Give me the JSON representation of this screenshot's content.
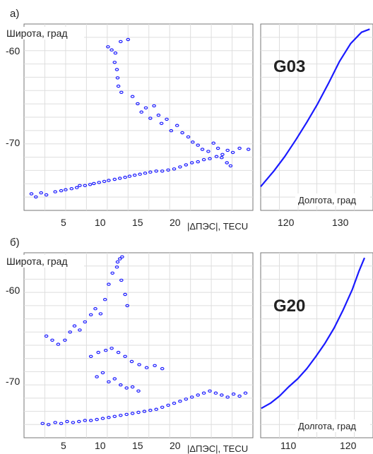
{
  "chart_data": [
    {
      "type": "scatter",
      "panel_label": "а)",
      "ylabel": "Широта, град",
      "xlabel": "|ΔПЭС|, TECU",
      "xticks": [
        "5",
        "10",
        "15",
        "20"
      ],
      "yticks": [
        "-60",
        "-70"
      ],
      "xlim": [
        0,
        30.8
      ],
      "ylim": [
        -76.8,
        -58.8
      ],
      "marker_color": "#1a1aff",
      "series": [
        {
          "points": [
            [
              1.0,
              -75.2
            ],
            [
              1.6,
              -75.5
            ],
            [
              2.3,
              -75.1
            ],
            [
              3.0,
              -75.3
            ],
            [
              4.2,
              -75.0
            ],
            [
              5.0,
              -74.9
            ],
            [
              5.6,
              -74.8
            ],
            [
              6.4,
              -74.7
            ],
            [
              7.1,
              -74.6
            ],
            [
              7.5,
              -74.4
            ],
            [
              8.2,
              -74.4
            ],
            [
              8.9,
              -74.3
            ],
            [
              9.4,
              -74.2
            ],
            [
              10.1,
              -74.1
            ],
            [
              10.8,
              -74.0
            ],
            [
              11.4,
              -73.9
            ],
            [
              12.2,
              -73.8
            ],
            [
              12.9,
              -73.7
            ],
            [
              13.6,
              -73.6
            ],
            [
              14.2,
              -73.5
            ],
            [
              14.9,
              -73.4
            ],
            [
              15.6,
              -73.3
            ],
            [
              16.3,
              -73.2
            ],
            [
              17.0,
              -73.1
            ],
            [
              17.8,
              -73.0
            ],
            [
              18.6,
              -73.0
            ],
            [
              19.4,
              -72.9
            ],
            [
              20.2,
              -72.8
            ],
            [
              21.0,
              -72.6
            ],
            [
              21.8,
              -72.4
            ],
            [
              22.6,
              -72.2
            ],
            [
              23.4,
              -72.1
            ],
            [
              24.2,
              -71.9
            ],
            [
              25.0,
              -71.8
            ],
            [
              25.9,
              -71.6
            ],
            [
              26.6,
              -71.7
            ],
            [
              27.3,
              -72.2
            ],
            [
              27.8,
              -72.5
            ],
            [
              11.3,
              -61.0
            ],
            [
              11.8,
              -61.3
            ],
            [
              12.3,
              -61.6
            ],
            [
              13.0,
              -60.5
            ],
            [
              14.0,
              -60.3
            ],
            [
              12.2,
              -62.5
            ],
            [
              12.5,
              -63.2
            ],
            [
              12.6,
              -64.0
            ],
            [
              12.7,
              -64.8
            ],
            [
              13.1,
              -65.4
            ],
            [
              14.6,
              -65.8
            ],
            [
              15.3,
              -66.5
            ],
            [
              15.8,
              -67.3
            ],
            [
              16.4,
              -66.9
            ],
            [
              17.0,
              -67.9
            ],
            [
              17.5,
              -66.7
            ],
            [
              18.1,
              -67.6
            ],
            [
              18.5,
              -68.4
            ],
            [
              19.2,
              -68.0
            ],
            [
              19.8,
              -69.1
            ],
            [
              20.6,
              -68.6
            ],
            [
              21.3,
              -69.3
            ],
            [
              22.1,
              -69.7
            ],
            [
              22.7,
              -70.2
            ],
            [
              23.4,
              -70.5
            ],
            [
              24.0,
              -70.9
            ],
            [
              24.8,
              -71.1
            ],
            [
              25.5,
              -70.3
            ],
            [
              26.1,
              -70.8
            ],
            [
              26.7,
              -71.4
            ],
            [
              27.4,
              -71.0
            ],
            [
              28.1,
              -71.2
            ],
            [
              29.0,
              -70.8
            ],
            [
              30.2,
              -70.9
            ]
          ]
        }
      ]
    },
    {
      "type": "line",
      "panel_label": "G03",
      "xlabel": "Долгота, град",
      "xticks": [
        "120",
        "130"
      ],
      "xlim": [
        115.6,
        136.1
      ],
      "ylim": [
        -76.8,
        -58.8
      ],
      "line_color": "#1a1aff",
      "points": [
        [
          115.6,
          -74.5
        ],
        [
          118.0,
          -73.0
        ],
        [
          120.0,
          -71.6
        ],
        [
          122.0,
          -70.0
        ],
        [
          124.0,
          -68.3
        ],
        [
          126.0,
          -66.5
        ],
        [
          128.0,
          -64.5
        ],
        [
          130.0,
          -62.4
        ],
        [
          132.0,
          -60.7
        ],
        [
          134.0,
          -59.6
        ],
        [
          135.5,
          -59.3
        ]
      ]
    },
    {
      "type": "scatter",
      "panel_label": "б)",
      "ylabel": "Широта, град",
      "xlabel": "|ΔПЭС|, TECU",
      "xticks": [
        "5",
        "10",
        "15",
        "20"
      ],
      "yticks": [
        "-60",
        "-70"
      ],
      "xlim": [
        0,
        30.8
      ],
      "ylim": [
        -75.6,
        -57.4
      ],
      "marker_color": "#1a1aff",
      "series": [
        {
          "points": [
            [
              2.5,
              -74.2
            ],
            [
              3.3,
              -74.3
            ],
            [
              4.2,
              -74.1
            ],
            [
              5.0,
              -74.2
            ],
            [
              5.8,
              -74.0
            ],
            [
              6.6,
              -74.1
            ],
            [
              7.4,
              -74.0
            ],
            [
              8.2,
              -73.9
            ],
            [
              9.0,
              -73.9
            ],
            [
              9.8,
              -73.8
            ],
            [
              10.6,
              -73.7
            ],
            [
              11.4,
              -73.6
            ],
            [
              12.2,
              -73.5
            ],
            [
              13.0,
              -73.4
            ],
            [
              13.8,
              -73.3
            ],
            [
              14.6,
              -73.2
            ],
            [
              15.4,
              -73.1
            ],
            [
              16.2,
              -73.0
            ],
            [
              17.0,
              -72.9
            ],
            [
              17.8,
              -72.8
            ],
            [
              18.6,
              -72.6
            ],
            [
              19.4,
              -72.4
            ],
            [
              20.2,
              -72.2
            ],
            [
              21.0,
              -72.0
            ],
            [
              21.8,
              -71.8
            ],
            [
              22.6,
              -71.6
            ],
            [
              23.4,
              -71.4
            ],
            [
              24.2,
              -71.2
            ],
            [
              25.0,
              -71.0
            ],
            [
              25.8,
              -71.2
            ],
            [
              26.6,
              -71.4
            ],
            [
              27.4,
              -71.6
            ],
            [
              28.2,
              -71.3
            ],
            [
              29.0,
              -71.5
            ],
            [
              29.8,
              -71.2
            ],
            [
              3.0,
              -65.6
            ],
            [
              3.8,
              -66.0
            ],
            [
              4.6,
              -66.4
            ],
            [
              5.5,
              -66.0
            ],
            [
              6.2,
              -65.2
            ],
            [
              6.8,
              -64.6
            ],
            [
              7.5,
              -65.0
            ],
            [
              8.2,
              -64.2
            ],
            [
              9.0,
              -63.5
            ],
            [
              9.6,
              -62.9
            ],
            [
              10.3,
              -63.4
            ],
            [
              10.9,
              -62.0
            ],
            [
              11.4,
              -60.5
            ],
            [
              11.9,
              -59.4
            ],
            [
              12.5,
              -58.8
            ],
            [
              13.1,
              -60.1
            ],
            [
              13.6,
              -61.5
            ],
            [
              13.9,
              -62.6
            ],
            [
              12.6,
              -58.3
            ],
            [
              12.9,
              -58.0
            ],
            [
              13.2,
              -57.8
            ],
            [
              9.0,
              -67.6
            ],
            [
              10.0,
              -67.2
            ],
            [
              11.0,
              -67.0
            ],
            [
              11.8,
              -66.8
            ],
            [
              12.7,
              -67.2
            ],
            [
              13.6,
              -67.6
            ],
            [
              14.5,
              -68.1
            ],
            [
              15.5,
              -68.4
            ],
            [
              16.5,
              -68.7
            ],
            [
              17.6,
              -68.5
            ],
            [
              18.6,
              -68.8
            ],
            [
              9.8,
              -69.6
            ],
            [
              10.6,
              -69.2
            ],
            [
              11.4,
              -70.1
            ],
            [
              12.2,
              -69.8
            ],
            [
              13.0,
              -70.4
            ],
            [
              13.8,
              -70.7
            ],
            [
              14.6,
              -70.6
            ],
            [
              15.4,
              -71.0
            ]
          ]
        }
      ]
    },
    {
      "type": "line",
      "panel_label": "G20",
      "xlabel": "Долгота, град",
      "xticks": [
        "110",
        "120"
      ],
      "xlim": [
        103.4,
        121.9
      ],
      "ylim": [
        -75.6,
        -57.4
      ],
      "line_color": "#1a1aff",
      "points": [
        [
          103.5,
          -72.7
        ],
        [
          105.0,
          -72.2
        ],
        [
          106.5,
          -71.5
        ],
        [
          108.0,
          -70.6
        ],
        [
          109.5,
          -69.8
        ],
        [
          111.0,
          -68.8
        ],
        [
          112.5,
          -67.6
        ],
        [
          114.0,
          -66.3
        ],
        [
          115.5,
          -64.8
        ],
        [
          117.0,
          -63.0
        ],
        [
          118.5,
          -61.0
        ],
        [
          119.6,
          -59.2
        ],
        [
          120.5,
          -57.9
        ]
      ]
    }
  ]
}
